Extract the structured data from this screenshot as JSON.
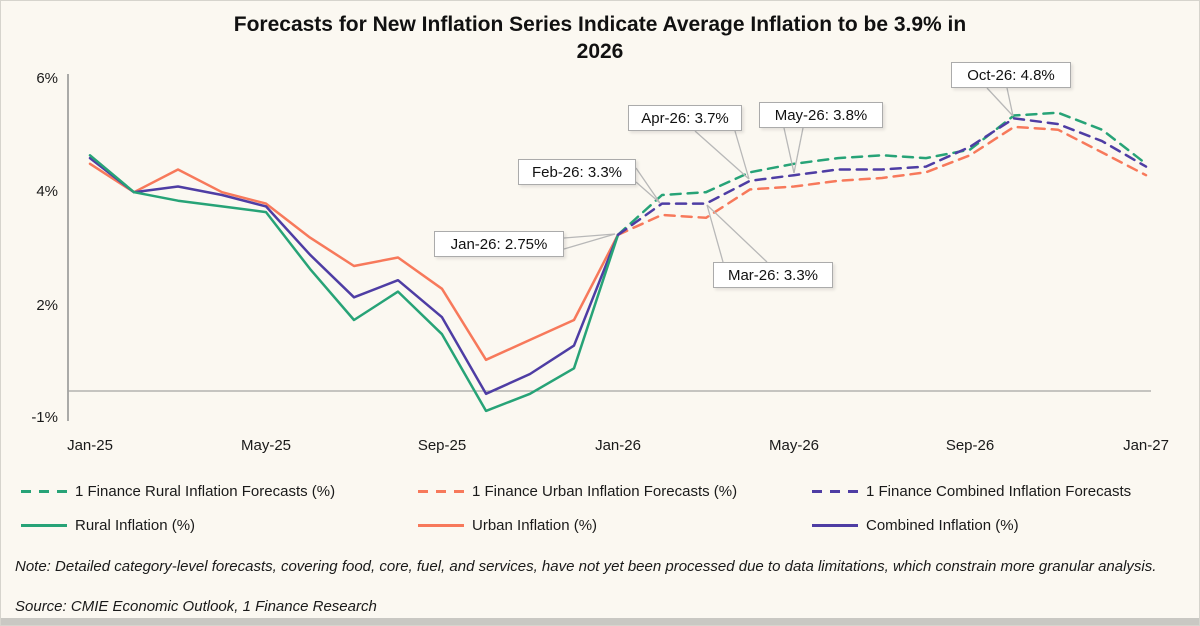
{
  "title_lines": [
    "Forecasts for New Inflation Series Indicate Average Inflation to be 3.9% in",
    "2026"
  ],
  "chart_data": {
    "type": "line",
    "title": "Forecasts for New Inflation Series Indicate Average Inflation to be 3.9% in 2026",
    "xlabel": "",
    "ylabel": "",
    "y_axis_tick_labels": [
      "6%",
      "4%",
      "2%",
      "-1%"
    ],
    "x_axis_tick_labels": [
      "Jan-25",
      "May-25",
      "Sep-25",
      "Jan-26",
      "May-26",
      "Sep-26",
      "Jan-27"
    ],
    "ylim": [
      -1,
      6
    ],
    "grid": "zero-line-only",
    "legend_position": "bottom",
    "history_months": [
      "Jan-25",
      "Feb-25",
      "Mar-25",
      "Apr-25",
      "May-25",
      "Jun-25",
      "Jul-25",
      "Aug-25",
      "Sep-25",
      "Oct-25",
      "Nov-25",
      "Dec-25",
      "Jan-26"
    ],
    "forecast_months": [
      "Jan-26",
      "Feb-26",
      "Mar-26",
      "Apr-26",
      "May-26",
      "Jun-26",
      "Jul-26",
      "Aug-26",
      "Sep-26",
      "Oct-26",
      "Nov-26",
      "Dec-26",
      "Jan-27"
    ],
    "series": [
      {
        "name": "Urban Inflation (%)",
        "segment": "history",
        "style": "solid",
        "color": "#f7795b",
        "values": [
          4.0,
          3.5,
          3.9,
          3.5,
          3.3,
          2.7,
          2.2,
          2.35,
          1.8,
          0.55,
          0.9,
          1.25,
          2.75
        ]
      },
      {
        "name": "Combined Inflation (%)",
        "segment": "history",
        "style": "solid",
        "color": "#4e3da4",
        "values": [
          4.1,
          3.5,
          3.6,
          3.45,
          3.25,
          2.4,
          1.65,
          1.95,
          1.3,
          -0.05,
          0.3,
          0.8,
          2.75
        ]
      },
      {
        "name": "Rural Inflation (%)",
        "segment": "history",
        "style": "solid",
        "color": "#27a377",
        "values": [
          4.15,
          3.5,
          3.35,
          3.25,
          3.15,
          2.15,
          1.25,
          1.75,
          1.0,
          -0.35,
          -0.05,
          0.4,
          2.75
        ]
      },
      {
        "name": "1 Finance Urban Inflation Forecasts (%)",
        "segment": "forecast",
        "style": "dashed",
        "color": "#f7795b",
        "values": [
          2.75,
          3.1,
          3.05,
          3.55,
          3.6,
          3.7,
          3.75,
          3.85,
          4.15,
          4.65,
          4.6,
          4.2,
          3.8
        ]
      },
      {
        "name": "1 Finance Rural Inflation Forecasts (%)",
        "segment": "forecast",
        "style": "dashed",
        "color": "#27a377",
        "values": [
          2.75,
          3.45,
          3.5,
          3.85,
          4.0,
          4.1,
          4.15,
          4.1,
          4.25,
          4.85,
          4.9,
          4.6,
          4.0
        ]
      },
      {
        "name": "1 Finance Combined Inflation Forecasts",
        "segment": "forecast",
        "style": "dashed",
        "color": "#4e3da4",
        "values": [
          2.75,
          3.3,
          3.3,
          3.7,
          3.8,
          3.9,
          3.9,
          3.95,
          4.3,
          4.8,
          4.7,
          4.4,
          3.95
        ]
      }
    ],
    "annotations": [
      {
        "label": "Jan-26: 2.75%",
        "month": "Jan-26",
        "value": 2.75
      },
      {
        "label": "Feb-26: 3.3%",
        "month": "Feb-26",
        "value": 3.3
      },
      {
        "label": "Mar-26: 3.3%",
        "month": "Mar-26",
        "value": 3.3
      },
      {
        "label": "Apr-26: 3.7%",
        "month": "Apr-26",
        "value": 3.7
      },
      {
        "label": "May-26: 3.8%",
        "month": "May-26",
        "value": 3.8
      },
      {
        "label": "Oct-26: 4.8%",
        "month": "Oct-26",
        "value": 4.8
      }
    ]
  },
  "legend": {
    "row1": [
      {
        "label": "1 Finance Rural Inflation Forecasts (%)",
        "color": "#27a377",
        "style": "dashed"
      },
      {
        "label": "1 Finance Urban Inflation Forecasts (%)",
        "color": "#f7795b",
        "style": "dashed"
      },
      {
        "label": "1 Finance Combined Inflation Forecasts",
        "color": "#4e3da4",
        "style": "dashed"
      }
    ],
    "row2": [
      {
        "label": "Rural Inflation (%)",
        "color": "#27a377",
        "style": "solid"
      },
      {
        "label": "Urban Inflation (%)",
        "color": "#f7795b",
        "style": "solid"
      },
      {
        "label": "Combined Inflation (%)",
        "color": "#4e3da4",
        "style": "solid"
      }
    ]
  },
  "note": "Note: Detailed category-level forecasts, covering food, core, fuel, and services, have not yet been processed due to data limitations, which constrain more granular analysis.",
  "source": "Source:  CMIE Economic Outlook, 1 Finance Research",
  "colors": {
    "rural": "#27a377",
    "urban": "#f7795b",
    "combined": "#4e3da4",
    "background": "#fbf8f1",
    "axis": "#8f8f8f",
    "callout_border": "#ababab"
  }
}
